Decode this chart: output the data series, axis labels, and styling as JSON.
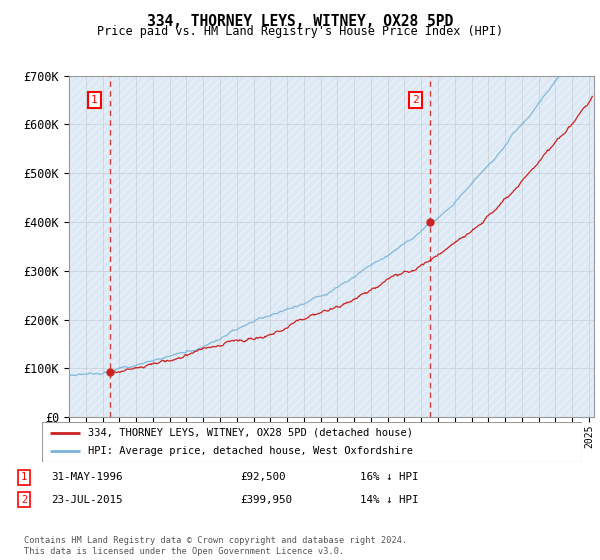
{
  "title": "334, THORNEY LEYS, WITNEY, OX28 5PD",
  "subtitle": "Price paid vs. HM Land Registry's House Price Index (HPI)",
  "ylim": [
    0,
    700000
  ],
  "yticks": [
    0,
    100000,
    200000,
    300000,
    400000,
    500000,
    600000,
    700000
  ],
  "ytick_labels": [
    "£0",
    "£100K",
    "£200K",
    "£300K",
    "£400K",
    "£500K",
    "£600K",
    "£700K"
  ],
  "hpi_color": "#7ab4d8",
  "price_color": "#cc2222",
  "vline_color": "#cc2222",
  "marker1_x": 1996.42,
  "marker1_y": 92500,
  "marker2_x": 2015.55,
  "marker2_y": 399950,
  "legend_label1": "334, THORNEY LEYS, WITNEY, OX28 5PD (detached house)",
  "legend_label2": "HPI: Average price, detached house, West Oxfordshire",
  "footer": "Contains HM Land Registry data © Crown copyright and database right 2024.\nThis data is licensed under the Open Government Licence v3.0.",
  "grid_color": "#bbbbbb",
  "plot_bg": "#ddeaf5",
  "xlim_start": 1994,
  "xlim_end": 2025.3
}
